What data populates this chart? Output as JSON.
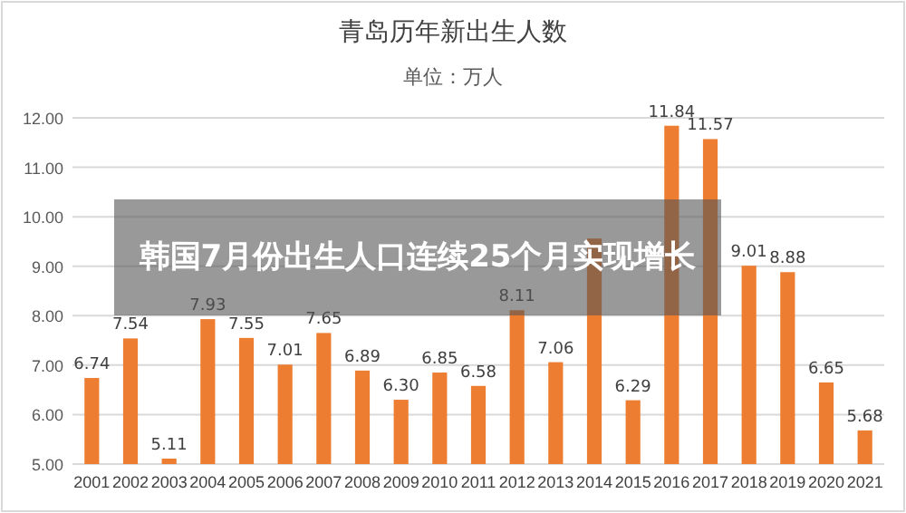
{
  "chart_data": {
    "type": "bar",
    "title": "青岛历年新出生人数",
    "subtitle": "单位：万人",
    "categories": [
      "2001",
      "2002",
      "2003",
      "2004",
      "2005",
      "2006",
      "2007",
      "2008",
      "2009",
      "2010",
      "2011",
      "2012",
      "2013",
      "2014",
      "2015",
      "2016",
      "2017",
      "2018",
      "2019",
      "2020",
      "2021"
    ],
    "values": [
      6.74,
      7.54,
      5.11,
      7.93,
      7.55,
      7.01,
      7.65,
      6.89,
      6.3,
      6.85,
      6.58,
      8.11,
      7.06,
      9.56,
      6.29,
      11.84,
      11.57,
      9.01,
      8.88,
      6.65,
      5.68
    ],
    "value_labels": [
      "6.74",
      "7.54",
      "5.11",
      "7.93",
      "7.55",
      "7.01",
      "7.65",
      "6.89",
      "6.30",
      "6.85",
      "6.58",
      "8.11",
      "7.06",
      null,
      "6.29",
      "11.84",
      "11.57",
      "9.01",
      "8.88",
      "6.65",
      "5.68"
    ],
    "color": "#ed7d31",
    "ylim": [
      5,
      12
    ],
    "yticks": [
      {
        "value": 5,
        "label": "5.00"
      },
      {
        "value": 6,
        "label": "6.00"
      },
      {
        "value": 7,
        "label": "7.00"
      },
      {
        "value": 8,
        "label": "8.00"
      },
      {
        "value": 9,
        "label": "9.00"
      },
      {
        "value": 10,
        "label": "10.00"
      },
      {
        "value": 11,
        "label": "11.00"
      },
      {
        "value": 12,
        "label": "12.00"
      }
    ],
    "grid": "y",
    "annotations": [
      "韩国7月份出生人口连续25个月实现增长"
    ]
  }
}
